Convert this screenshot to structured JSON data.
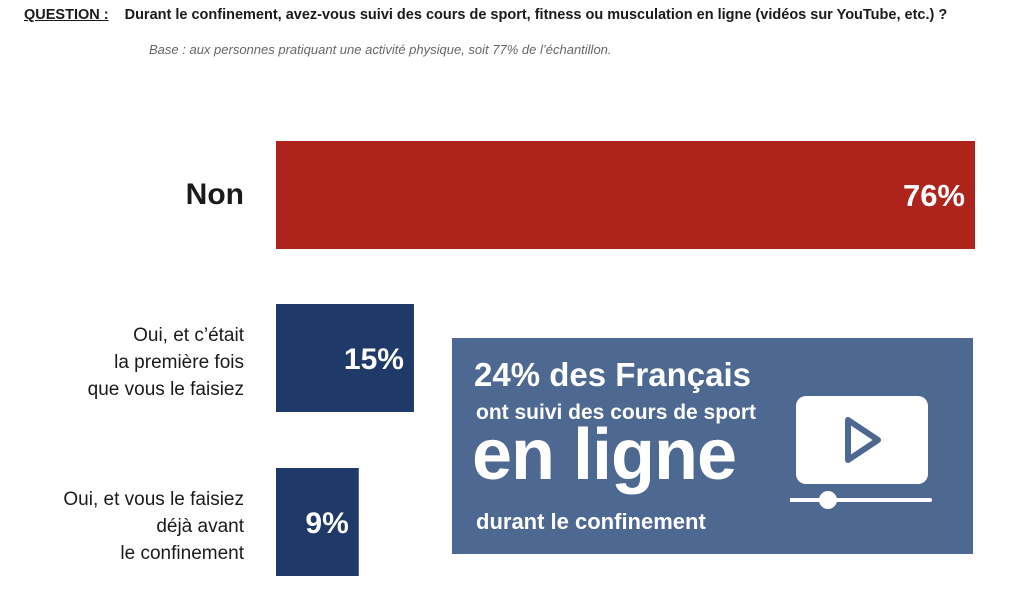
{
  "question": {
    "label": "QUESTION :",
    "text": "Durant le confinement, avez-vous suivi des cours de sport, fitness ou musculation en ligne (vidéos sur YouTube, etc.) ?"
  },
  "base": "Base : aux personnes pratiquant une activité physique, soit 77% de l’échantillon.",
  "chart_data": {
    "type": "bar",
    "orientation": "horizontal",
    "categories": [
      "Non",
      "Oui, et c’était la première fois que vous le faisiez",
      "Oui, et vous le faisiez déjà avant le confinement"
    ],
    "category_lines": [
      [
        "Non"
      ],
      [
        "Oui, et c’était",
        "la première fois",
        "que vous le faisiez"
      ],
      [
        "Oui, et vous le faisiez",
        "déjà avant",
        "le confinement"
      ]
    ],
    "values": [
      76,
      15,
      9
    ],
    "value_labels": [
      "76%",
      "15%",
      "9%"
    ],
    "colors": [
      "#ae241d",
      "#1f3a68",
      "#1f3a68"
    ],
    "xlim": [
      0,
      76
    ],
    "grid": false,
    "legend": "none"
  },
  "callout": {
    "line1": "24% des Français",
    "line2": "ont suivi des cours de sport",
    "line3": "en ligne",
    "line4": "durant le confinement",
    "icon": "video-play-icon",
    "background": "#4d6891"
  }
}
